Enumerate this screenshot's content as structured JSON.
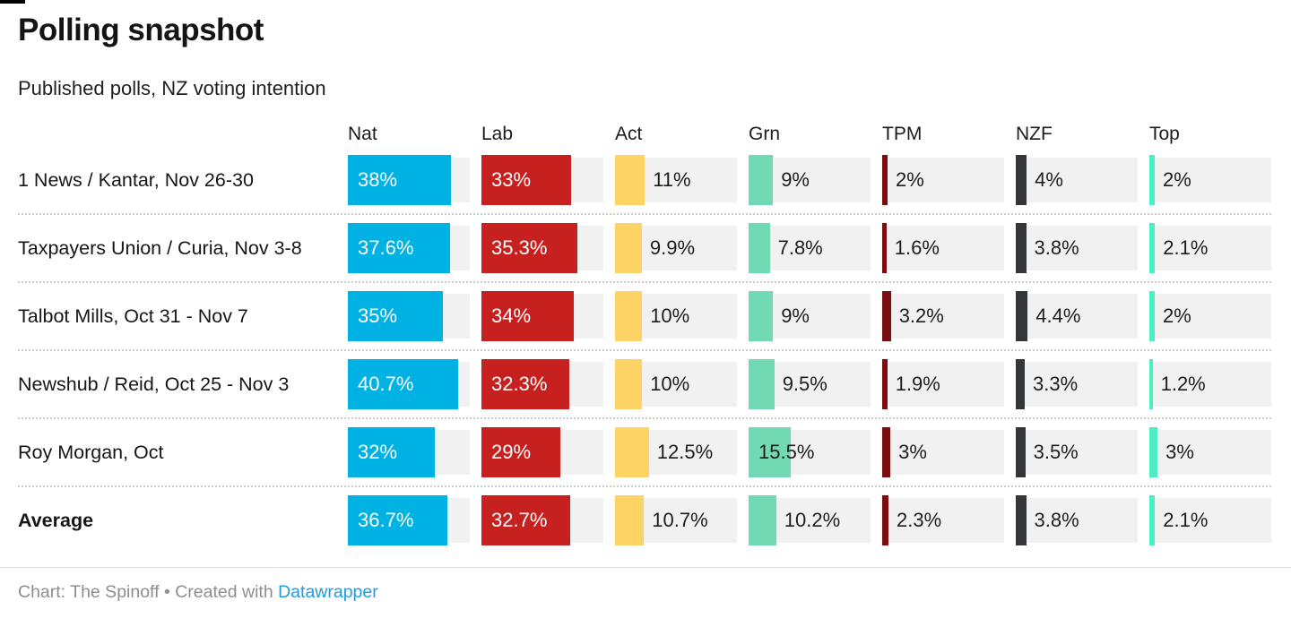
{
  "header": {
    "title": "Polling snapshot",
    "subtitle": "Published polls, NZ voting intention"
  },
  "chart_data": {
    "type": "bar",
    "orientation": "horizontal",
    "title": "Polling snapshot",
    "subtitle": "Published polls, NZ voting intention",
    "categories": [
      "1 News / Kantar, Nov 26-30",
      "Taxpayers Union / Curia, Nov 3-8",
      "Talbot Mills, Oct 31 - Nov 7",
      "Newshub / Reid, Oct 25 - Nov 3",
      "Roy Morgan, Oct",
      "Average"
    ],
    "emphasized_category": "Average",
    "series": [
      {
        "name": "Nat",
        "color": "#00b1e3",
        "label_style": "light",
        "values": [
          38,
          37.6,
          35,
          40.7,
          32,
          36.7
        ]
      },
      {
        "name": "Lab",
        "color": "#c6201f",
        "label_style": "light",
        "values": [
          33,
          35.3,
          34,
          32.3,
          29,
          32.7
        ]
      },
      {
        "name": "Act",
        "color": "#fcd364",
        "label_style": "dark",
        "values": [
          11,
          9.9,
          10,
          10,
          12.5,
          10.7
        ]
      },
      {
        "name": "Grn",
        "color": "#72d9b5",
        "label_style": "dark",
        "values": [
          9,
          7.8,
          9,
          9.5,
          15.5,
          10.2
        ]
      },
      {
        "name": "TPM",
        "color": "#7b0d10",
        "label_style": "dark",
        "values": [
          2,
          1.6,
          3.2,
          1.9,
          3,
          2.3
        ]
      },
      {
        "name": "NZF",
        "color": "#343739",
        "label_style": "dark",
        "values": [
          4,
          3.8,
          4.4,
          3.3,
          3.5,
          3.8
        ]
      },
      {
        "name": "Top",
        "color": "#4deec4",
        "label_style": "dark",
        "values": [
          2,
          2.1,
          2,
          1.2,
          3,
          2.1
        ]
      }
    ],
    "value_suffix": "%",
    "xlim": [
      0,
      45
    ],
    "grid": false,
    "legend_position": "column-headers",
    "track_color": "#f1f1f1",
    "label_dark_color": "#1d1d1d",
    "label_light_color": "#ffffff"
  },
  "footer": {
    "credit_prefix": "Chart: The Spinoff • Created with ",
    "link_label": "Datawrapper",
    "link_color": "#1d9ce0"
  }
}
